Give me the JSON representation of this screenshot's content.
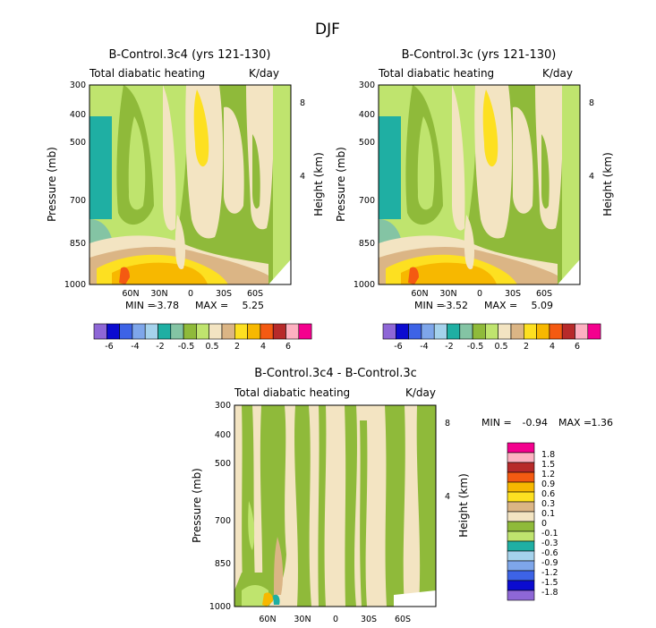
{
  "figure_title": "DJF",
  "chart_data": [
    {
      "type": "contour",
      "title": "B-Control.3c4 (yrs 121-130)",
      "variable": "Total diabatic heating",
      "units": "K/day",
      "ylabel_left": "Pressure (mb)",
      "ylabel_right": "Height (km)",
      "y_ticks": [
        "300",
        "400",
        "500",
        "700",
        "850",
        "1000"
      ],
      "y_right_ticks": [
        "8",
        "4"
      ],
      "x_ticks": [
        "60N",
        "30N",
        "0",
        "30S",
        "60S"
      ],
      "min_label": "MIN =",
      "min": "-3.78",
      "max_label": "MAX =",
      "max": "5.25",
      "colorbar_labels": [
        "-6",
        "-4",
        "-2",
        "-0.5",
        "0.5",
        "2",
        "4",
        "6"
      ]
    },
    {
      "type": "contour",
      "title": "B-Control.3c (yrs 121-130)",
      "variable": "Total diabatic heating",
      "units": "K/day",
      "ylabel_left": "Pressure (mb)",
      "ylabel_right": "Height (km)",
      "y_ticks": [
        "300",
        "400",
        "500",
        "700",
        "850",
        "1000"
      ],
      "y_right_ticks": [
        "8",
        "4"
      ],
      "x_ticks": [
        "60N",
        "30N",
        "0",
        "30S",
        "60S"
      ],
      "min_label": "MIN =",
      "min": "-3.52",
      "max_label": "MAX =",
      "max": "5.09",
      "colorbar_labels": [
        "-6",
        "-4",
        "-2",
        "-0.5",
        "0.5",
        "2",
        "4",
        "6"
      ]
    },
    {
      "type": "contour",
      "title": "B-Control.3c4 - B-Control.3c",
      "variable": "Total diabatic heating",
      "units": "K/day",
      "ylabel_left": "Pressure (mb)",
      "ylabel_right": "Height (km)",
      "y_ticks": [
        "300",
        "400",
        "500",
        "700",
        "850",
        "1000"
      ],
      "y_right_ticks": [
        "8",
        "4"
      ],
      "x_ticks": [
        "60N",
        "30N",
        "0",
        "30S",
        "60S"
      ],
      "min_label": "MIN =",
      "min": "-0.94",
      "max_label": "MAX =",
      "max": "1.36",
      "colorbar_labels": [
        "1.8",
        "1.5",
        "1.2",
        "0.9",
        "0.6",
        "0.3",
        "0.1",
        "0",
        "-0.1",
        "-0.3",
        "-0.6",
        "-0.9",
        "-1.2",
        "-1.5",
        "-1.8"
      ]
    }
  ],
  "palette": {
    "main": [
      "#8e67d6",
      "#0b0bd0",
      "#3d63e6",
      "#7ea6ea",
      "#a5d2ec",
      "#1fafa3",
      "#84c4a4",
      "#8fba3a",
      "#bfe46e",
      "#f3e4c2",
      "#dbb585",
      "#fde021",
      "#f7b800",
      "#f45a12",
      "#b72a2a",
      "#fdb1c1",
      "#f4008e"
    ],
    "diff": [
      "#f4008e",
      "#fdb1c1",
      "#b72a2a",
      "#f45a12",
      "#f7b800",
      "#fde021",
      "#dbb585",
      "#f3e4c2",
      "#8fba3a",
      "#bfe46e",
      "#1fafa3",
      "#a5d2ec",
      "#7ea6ea",
      "#3d63e6",
      "#0b0bd0",
      "#8e67d6"
    ]
  }
}
